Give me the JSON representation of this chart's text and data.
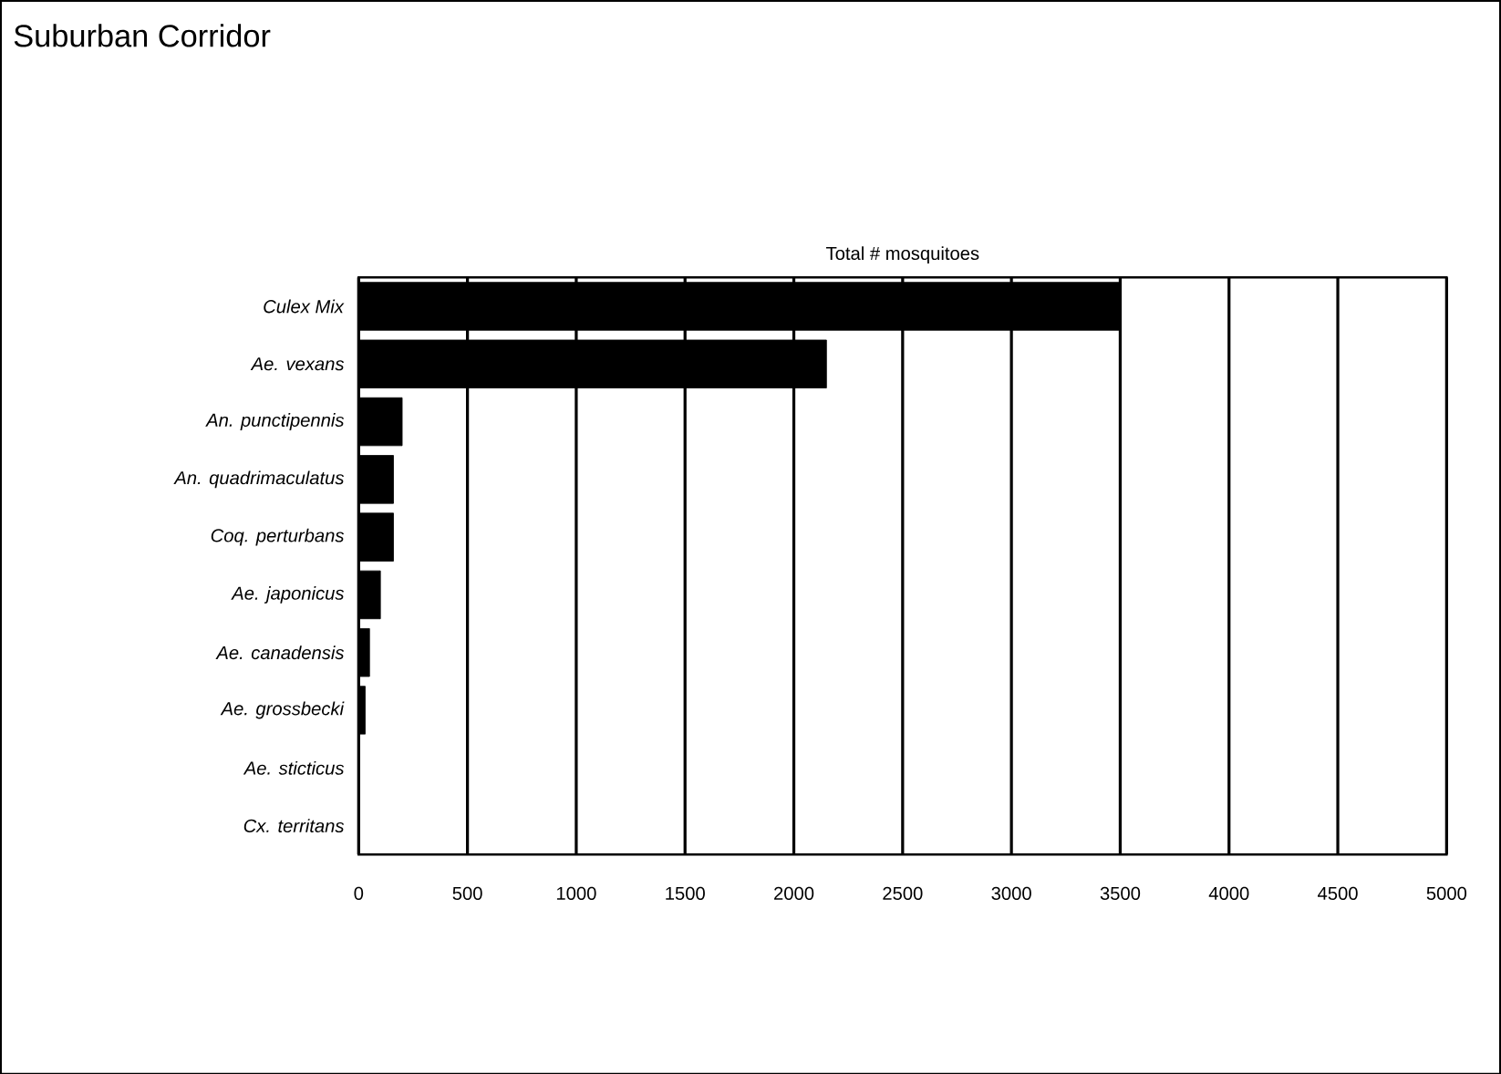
{
  "chart_data": {
    "type": "bar",
    "orientation": "horizontal",
    "title": "Suburban Corridor",
    "xlabel": "Total # mosquitoes",
    "categories": [
      "*Culex Mix*",
      "*Ae. vexans*",
      "*An. punctipennis*",
      "*An. quadrimaculatus*",
      "*Coq. perturbans*",
      "*Ae. japonicus*",
      "*Ae. canadensis*",
      "*Ae. grossbecki*",
      "*Ae. sticticus*",
      "*Cx. territans*"
    ],
    "values": [
      3500,
      2150,
      200,
      160,
      160,
      100,
      50,
      30,
      null,
      null
    ],
    "color": "#000000",
    "xlim": [
      0,
      5000
    ],
    "xticks": [
      0,
      500,
      1000,
      1500,
      2000,
      2500,
      3000,
      3500,
      4000,
      4500,
      5000
    ],
    "grid": "x"
  }
}
